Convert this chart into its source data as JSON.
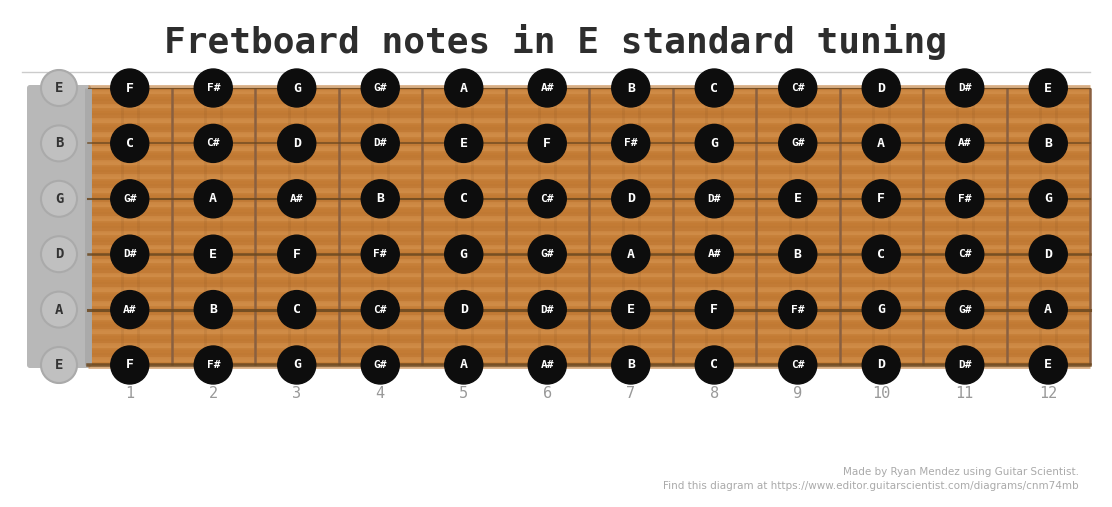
{
  "title": "Fretboard notes in E standard tuning",
  "title_fontsize": 26,
  "title_color": "#2d2d2d",
  "background_color": "#ffffff",
  "fretboard_bg": "#c8813c",
  "wood_grain_dark": "#b5702a",
  "wood_grain_light": "#d4924d",
  "fret_color": "#8B6040",
  "nut_color": "#bbbbbb",
  "open_string_bg": "#c0c0c0",
  "open_string_border": "#aaaaaa",
  "open_string_text": "#333333",
  "note_bg": "#0d0d0d",
  "note_text": "#ffffff",
  "string_color": "#7a5535",
  "fret_num_color": "#999999",
  "footer_color": "#aaaaaa",
  "footer_fontsize": 7.5,
  "open_strings": [
    "E",
    "B",
    "G",
    "D",
    "A",
    "E"
  ],
  "frets": 12,
  "num_strings": 6,
  "notes": [
    [
      "F",
      "F#",
      "G",
      "G#",
      "A",
      "A#",
      "B",
      "C",
      "C#",
      "D",
      "D#",
      "E"
    ],
    [
      "C",
      "C#",
      "D",
      "D#",
      "E",
      "F",
      "F#",
      "G",
      "G#",
      "A",
      "A#",
      "B"
    ],
    [
      "G#",
      "A",
      "A#",
      "B",
      "C",
      "C#",
      "D",
      "D#",
      "E",
      "F",
      "F#",
      "G"
    ],
    [
      "D#",
      "E",
      "F",
      "F#",
      "G",
      "G#",
      "A",
      "A#",
      "B",
      "C",
      "C#",
      "D"
    ],
    [
      "A#",
      "B",
      "C",
      "C#",
      "D",
      "D#",
      "E",
      "F",
      "F#",
      "G",
      "G#",
      "A"
    ],
    [
      "F",
      "F#",
      "G",
      "G#",
      "A",
      "A#",
      "B",
      "C",
      "C#",
      "D",
      "D#",
      "E"
    ]
  ],
  "fret_numbers": [
    1,
    2,
    3,
    4,
    5,
    6,
    7,
    8,
    9,
    10,
    11,
    12
  ],
  "footer_line1": "Made by Ryan Mendez using Guitar Scientist.",
  "footer_line2": "Find this diagram at https://www.editor.guitarscientist.com/diagrams/cnm74mb"
}
